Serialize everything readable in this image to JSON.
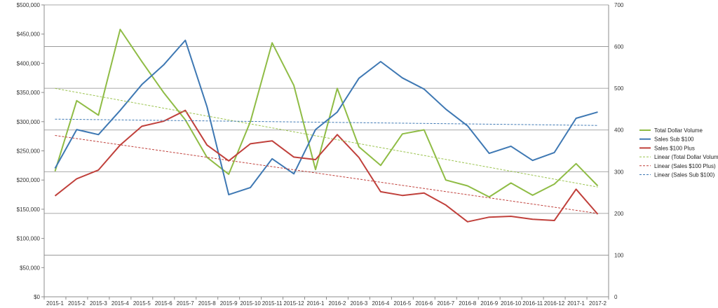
{
  "chart_data": {
    "type": "line",
    "title": "",
    "xlabel": "",
    "ylabel": "",
    "categories": [
      "2015-1",
      "2015-2",
      "2015-3",
      "2015-4",
      "2015-5",
      "2015-6",
      "2015-7",
      "2015-8",
      "2015-9",
      "2015-10",
      "2015-11",
      "2015-12",
      "2016-1",
      "2016-2",
      "2016-3",
      "2016-4",
      "2016-5",
      "2016-6",
      "2016-7",
      "2016-8",
      "2016-9",
      "2016-10",
      "2016-11",
      "2016-12",
      "2017-1",
      "2017-2"
    ],
    "y_left": {
      "min": 0,
      "max": 500000,
      "step": 50000,
      "tick_labels": [
        "$0",
        "$50,000",
        "$100,000",
        "$150,000",
        "$200,000",
        "$250,000",
        "$300,000",
        "$350,000",
        "$400,000",
        "$450,000",
        "$500,000"
      ]
    },
    "y_right": {
      "min": 0,
      "max": 700,
      "step": 100,
      "tick_labels": [
        "0",
        "100",
        "200",
        "300",
        "400",
        "500",
        "600",
        "700"
      ]
    },
    "grid": true,
    "legend_position": "right",
    "series": [
      {
        "name": "Total Dollar Volume",
        "axis": "left",
        "color": "#8fbc45",
        "style": "solid",
        "values": [
          215000,
          336000,
          311000,
          458000,
          403000,
          350000,
          303000,
          239000,
          210000,
          300000,
          435000,
          362000,
          218000,
          357000,
          257000,
          225000,
          279000,
          286000,
          200000,
          190000,
          171000,
          195000,
          174000,
          193000,
          228000,
          190000
        ]
      },
      {
        "name": "Sales Sub $100",
        "axis": "right",
        "color": "#3e78b3",
        "style": "solid",
        "values": [
          308,
          401,
          389,
          447,
          509,
          556,
          615,
          456,
          245,
          262,
          331,
          295,
          401,
          443,
          524,
          564,
          525,
          498,
          450,
          410,
          344,
          361,
          327,
          346,
          428,
          443
        ]
      },
      {
        "name": "Sales $100 Plus",
        "axis": "right",
        "color": "#c0403b",
        "style": "solid",
        "values": [
          242,
          283,
          304,
          364,
          409,
          421,
          447,
          364,
          326,
          367,
          374,
          335,
          329,
          389,
          334,
          252,
          243,
          249,
          220,
          180,
          191,
          193,
          186,
          183,
          258,
          198
        ]
      },
      {
        "name": "Linear (Total Dollar Volume)",
        "axis": "left",
        "color": "#9bc34f",
        "style": "dashed",
        "trend": [
          357000,
          188000
        ]
      },
      {
        "name": "Linear (Sales $100 Plus)",
        "axis": "right",
        "color": "#c0403b",
        "style": "dashed",
        "trend": [
          387,
          200
        ]
      },
      {
        "name": "Linear (Sales Sub $100)",
        "axis": "right",
        "color": "#3e78b3",
        "style": "dashed",
        "trend": [
          426,
          411
        ]
      }
    ]
  }
}
